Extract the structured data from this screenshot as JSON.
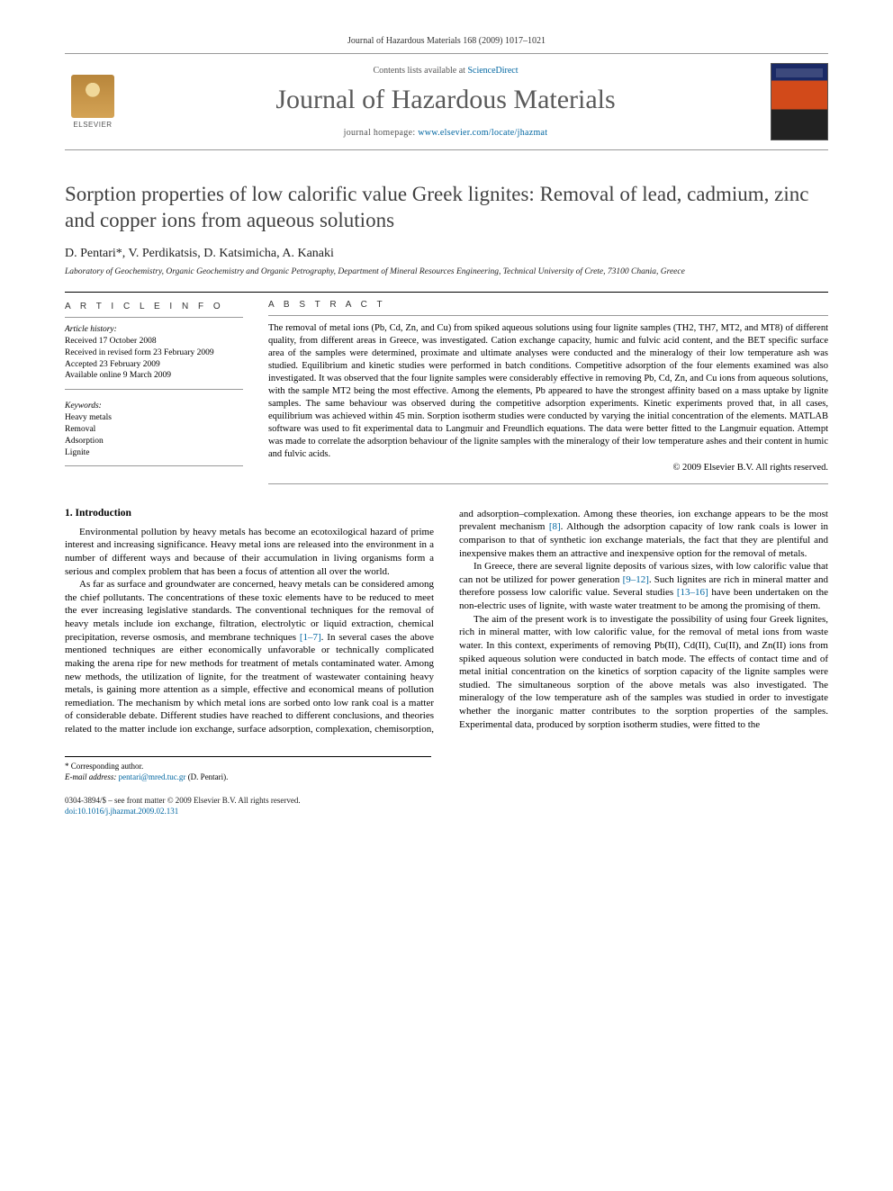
{
  "running_header": "Journal of Hazardous Materials 168 (2009) 1017–1021",
  "masthead": {
    "contents_prefix": "Contents lists available at ",
    "contents_link": "ScienceDirect",
    "journal_name": "Journal of Hazardous Materials",
    "homepage_prefix": "journal homepage: ",
    "homepage_url": "www.elsevier.com/locate/jhazmat",
    "publisher_word": "ELSEVIER"
  },
  "article": {
    "title": "Sorption properties of low calorific value Greek lignites: Removal of lead, cadmium, zinc and copper ions from aqueous solutions",
    "authors": "D. Pentari*, V. Perdikatsis, D. Katsimicha, A. Kanaki",
    "affiliation": "Laboratory of Geochemistry, Organic Geochemistry and Organic Petrography, Department of Mineral Resources Engineering, Technical University of Crete, 73100 Chania, Greece"
  },
  "info": {
    "header": "A R T I C L E   I N F O",
    "history_label": "Article history:",
    "history_lines": {
      "l1": "Received 17 October 2008",
      "l2": "Received in revised form 23 February 2009",
      "l3": "Accepted 23 February 2009",
      "l4": "Available online 9 March 2009"
    },
    "keywords_label": "Keywords:",
    "keywords": {
      "k1": "Heavy metals",
      "k2": "Removal",
      "k3": "Adsorption",
      "k4": "Lignite"
    }
  },
  "abstract": {
    "header": "A B S T R A C T",
    "text": "The removal of metal ions (Pb, Cd, Zn, and Cu) from spiked aqueous solutions using four lignite samples (TH2, TH7, MT2, and MT8) of different quality, from different areas in Greece, was investigated. Cation exchange capacity, humic and fulvic acid content, and the BET specific surface area of the samples were determined, proximate and ultimate analyses were conducted and the mineralogy of their low temperature ash was studied. Equilibrium and kinetic studies were performed in batch conditions. Competitive adsorption of the four elements examined was also investigated. It was observed that the four lignite samples were considerably effective in removing Pb, Cd, Zn, and Cu ions from aqueous solutions, with the sample MT2 being the most effective. Among the elements, Pb appeared to have the strongest affinity based on a mass uptake by lignite samples. The same behaviour was observed during the competitive adsorption experiments. Kinetic experiments proved that, in all cases, equilibrium was achieved within 45 min. Sorption isotherm studies were conducted by varying the initial concentration of the elements. MATLAB software was used to fit experimental data to Langmuir and Freundlich equations. The data were better fitted to the Langmuir equation. Attempt was made to correlate the adsorption behaviour of the lignite samples with the mineralogy of their low temperature ashes and their content in humic and fulvic acids.",
    "copyright": "© 2009 Elsevier B.V. All rights reserved."
  },
  "body": {
    "section1_title": "1.  Introduction",
    "p1": "Environmental pollution by heavy metals has become an ecotoxilogical hazard of prime interest and increasing significance. Heavy metal ions are released into the environment in a number of different ways and because of their accumulation in living organisms form a serious and complex problem that has been a focus of attention all over the world.",
    "p2a": "As far as surface and groundwater are concerned, heavy metals can be considered among the chief pollutants. The concentrations of these toxic elements have to be reduced to meet the ever increasing legislative standards. The conventional techniques for the removal of heavy metals include ion exchange, filtration, electrolytic or liquid extraction, chemical precipitation, reverse osmosis, and membrane techniques ",
    "ref_1_7": "[1–7]",
    "p2b": ". In several cases the above mentioned techniques are either economically unfavorable or technically complicated making the arena ripe for new methods for treatment of metals contaminated water. Among new methods, the utilization of lignite, for the treatment of wastewater containing heavy metals, is gaining more attention as a simple, effective and economical means of pollution remediation. The mechanism by which metal ions are sorbed onto low rank coal is a matter of considerable debate. Different studies have reached to different conclusions, and theories related to the matter include ion exchange, surface adsorption, complexation, chemisorption, and adsorption–complexation. Among these theories, ion exchange appears to be the most prevalent mechanism ",
    "ref_8": "[8]",
    "p2c": ". Although the adsorption capacity of low rank coals is lower in comparison to that of synthetic ion exchange materials, the fact that they are plentiful and inexpensive makes them an attractive and inexpensive option for the removal of metals.",
    "p3a": "In Greece, there are several lignite deposits of various sizes, with low calorific value that can not be utilized for power generation ",
    "ref_9_12": "[9–12]",
    "p3b": ". Such lignites are rich in mineral matter and therefore possess low calorific value. Several studies ",
    "ref_13_16": "[13–16]",
    "p3c": " have been undertaken on the non-electric uses of lignite, with waste water treatment to be among the promising of them.",
    "p4": "The aim of the present work is to investigate the possibility of using four Greek lignites, rich in mineral matter, with low calorific value, for the removal of metal ions from waste water. In this context, experiments of removing Pb(II), Cd(II), Cu(II), and Zn(II) ions from spiked aqueous solution were conducted in batch mode. The effects of contact time and of metal initial concentration on the kinetics of sorption capacity of the lignite samples were studied. The simultaneous sorption of the above metals was also investigated. The mineralogy of the low temperature ash of the samples was studied in order to investigate whether the inorganic matter contributes to the sorption properties of the samples. Experimental data, produced by sorption isotherm studies, were fitted to the"
  },
  "footnotes": {
    "corr": "* Corresponding author.",
    "email_label": "E-mail address: ",
    "email": "pentari@mred.tuc.gr",
    "email_suffix": " (D. Pentari)."
  },
  "bottom": {
    "line1": "0304-3894/$ – see front matter © 2009 Elsevier B.V. All rights reserved.",
    "doi": "doi:10.1016/j.jhazmat.2009.02.131"
  },
  "colors": {
    "link": "#0066a1",
    "title_gray": "#414141",
    "rule": "#999999"
  }
}
